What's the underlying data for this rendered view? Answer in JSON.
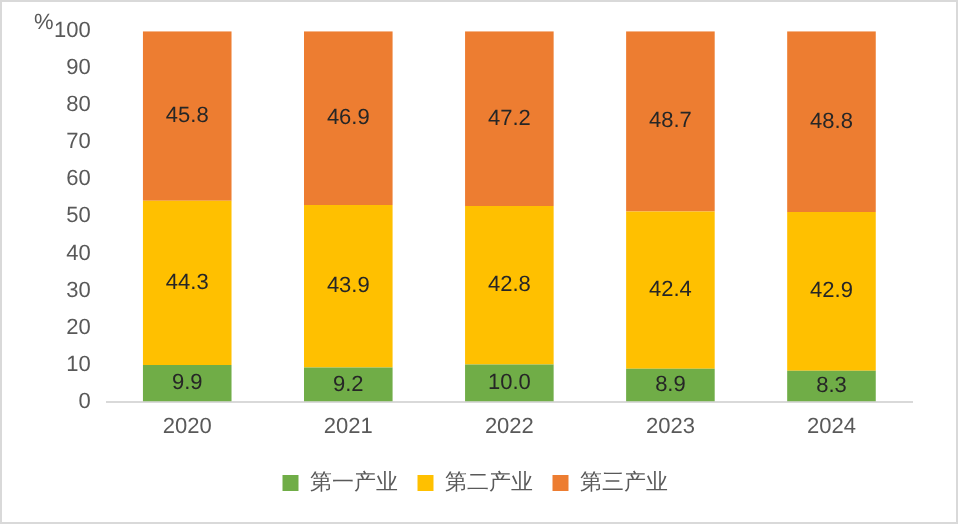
{
  "chart_data": {
    "type": "bar",
    "stacked": true,
    "ylabel": "%",
    "categories": [
      "2020",
      "2021",
      "2022",
      "2023",
      "2024"
    ],
    "series": [
      {
        "name": "第一产业",
        "color": "#70ad47",
        "values": [
          9.9,
          9.2,
          10.0,
          8.9,
          8.3
        ],
        "value_labels": [
          "9.9",
          "9.2",
          "10.0",
          "8.9",
          "8.3"
        ]
      },
      {
        "name": "第二产业",
        "color": "#ffc000",
        "values": [
          44.3,
          43.9,
          42.8,
          42.4,
          42.9
        ],
        "value_labels": [
          "44.3",
          "43.9",
          "42.8",
          "42.4",
          "42.9"
        ]
      },
      {
        "name": "第三产业",
        "color": "#ed7d31",
        "values": [
          45.8,
          46.9,
          47.2,
          48.7,
          48.8
        ],
        "value_labels": [
          "45.8",
          "46.9",
          "47.2",
          "48.7",
          "48.8"
        ]
      }
    ],
    "ylim": [
      0,
      100
    ],
    "yticks": [
      0,
      10,
      20,
      30,
      40,
      50,
      60,
      70,
      80,
      90,
      100
    ],
    "grid": false,
    "legend": "bottom"
  }
}
